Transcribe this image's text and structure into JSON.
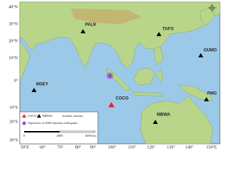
{
  "lat_labels": [
    "40°N",
    "30°N",
    "20°N",
    "10°N",
    "0°",
    "10°S",
    "20°S",
    "30°S"
  ],
  "lon_labels": [
    "50°E",
    "60°",
    "70°",
    "80°",
    "90°",
    "100°",
    "110°",
    "120°",
    "130°",
    "140°",
    "150°E"
  ],
  "stations": [
    "PALK",
    "TAFO",
    "GUMO",
    "MSEY",
    "COCO",
    "PMG",
    "MBWA"
  ],
  "legend": {
    "red_station": "COCO",
    "black_station": "MBWA",
    "stations_label": "Seismic stations",
    "epicenter_label": "Epicenter of 2004 Sumatra earthquake",
    "scale": [
      "0",
      "2000",
      "4000 km"
    ]
  }
}
